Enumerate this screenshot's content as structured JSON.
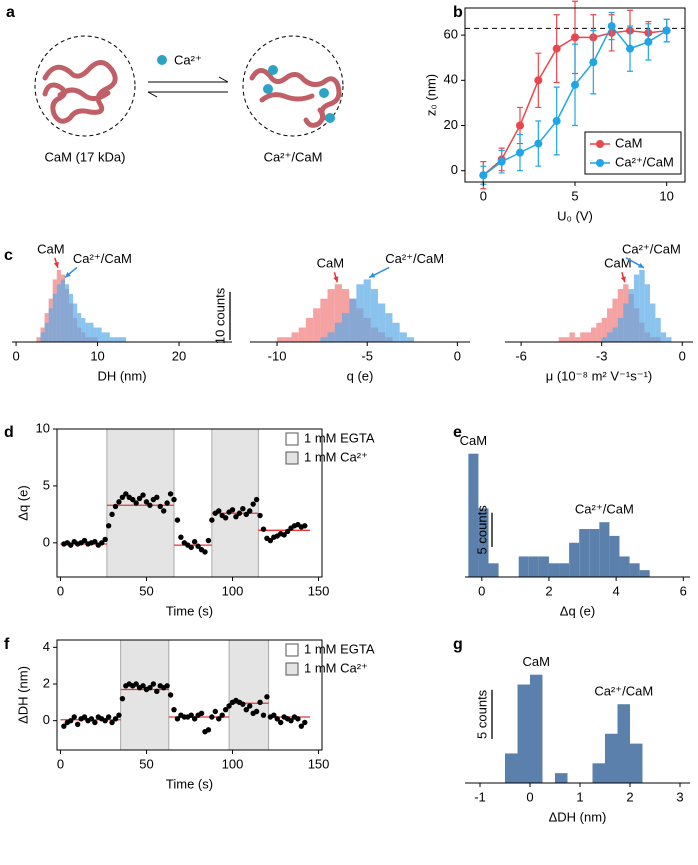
{
  "diagram": {
    "panel": "a",
    "ion_label": "Ca²⁺",
    "left_label": "CaM (17 kDa)",
    "right_label": "Ca²⁺/CaM"
  },
  "chart_data": [
    {
      "type": "line",
      "panel": "b",
      "x": [
        0,
        1,
        2,
        3,
        4,
        5,
        6,
        7,
        8,
        9,
        10
      ],
      "series": [
        {
          "name": "CaM",
          "color": "#e8474d",
          "values": [
            -2,
            5,
            20,
            40,
            54,
            59,
            59,
            61,
            62,
            61,
            62
          ],
          "errors": [
            6,
            5,
            8,
            12,
            15,
            16,
            10,
            8,
            9,
            5,
            5
          ]
        },
        {
          "name": "Ca²⁺/CaM",
          "color": "#1fa6e6",
          "values": [
            -2,
            4,
            8,
            12,
            22,
            38,
            48,
            64,
            54,
            57,
            62
          ],
          "errors": [
            4,
            5,
            8,
            10,
            15,
            18,
            14,
            6,
            10,
            8,
            5
          ]
        }
      ],
      "xlabel": "U₀ (V)",
      "ylabel": "z₀ (nm)",
      "xlim": [
        -1,
        11
      ],
      "ylim": [
        -5,
        72
      ],
      "xticks": [
        0,
        5,
        10
      ],
      "yticks": [
        0,
        20,
        40,
        60
      ],
      "reference_line": 63,
      "legend": "lower right",
      "frame": true
    },
    {
      "type": "histogram",
      "panel": "c",
      "xlabel": "DH (nm)",
      "xlim": [
        -0.5,
        26.5
      ],
      "ylim": [
        0,
        16
      ],
      "xticks": [
        0,
        10,
        20
      ],
      "series": [
        {
          "name": "CaM",
          "color": "#f07a7a",
          "bins": [
            2.5,
            3,
            3.5,
            4,
            4.5,
            5,
            5.5,
            6,
            6.5,
            7,
            7.5,
            8,
            8.5,
            9,
            9.5,
            10
          ],
          "values": [
            1,
            3,
            6,
            9,
            13,
            15,
            14,
            11,
            8,
            5,
            3,
            2,
            1,
            1,
            1
          ]
        },
        {
          "name": "Ca²⁺/CaM",
          "color": "#5aaae8",
          "bins": [
            3,
            3.5,
            4,
            4.5,
            5,
            5.5,
            6,
            6.5,
            7,
            7.5,
            8,
            8.5,
            9,
            9.5,
            10,
            10.5,
            11,
            11.5,
            12,
            12.5,
            13,
            13.5
          ],
          "values": [
            2,
            4,
            7,
            10,
            12,
            13,
            12,
            10,
            8,
            6,
            5,
            4,
            4,
            3,
            3,
            2,
            2,
            1,
            1,
            1,
            1
          ]
        }
      ],
      "scale_bar": {
        "value": 10,
        "label": "10 counts"
      },
      "annotation_arrows": true
    },
    {
      "type": "histogram",
      "xlabel": "q (e)",
      "xlim": [
        -11.5,
        0.7
      ],
      "ylim": [
        0,
        16
      ],
      "xticks": [
        -10,
        -5,
        0
      ],
      "series": [
        {
          "name": "CaM",
          "color": "#f07a7a",
          "bins": [
            -10,
            -9.6,
            -9.2,
            -8.8,
            -8.4,
            -8,
            -7.6,
            -7.2,
            -6.8,
            -6.4,
            -6,
            -5.6,
            -5.2,
            -4.8,
            -4.4,
            -4,
            -3.6
          ],
          "values": [
            1,
            1,
            2,
            3,
            5,
            7,
            9,
            11,
            12,
            11,
            9,
            7,
            5,
            3,
            2,
            1
          ]
        },
        {
          "name": "Ca²⁺/CaM",
          "color": "#5aaae8",
          "bins": [
            -7.6,
            -7.2,
            -6.8,
            -6.4,
            -6,
            -5.6,
            -5.2,
            -4.8,
            -4.4,
            -4,
            -3.6,
            -3.2,
            -2.8,
            -2.4
          ],
          "values": [
            1,
            2,
            4,
            6,
            9,
            12,
            13,
            11,
            8,
            6,
            4,
            2,
            1
          ]
        }
      ],
      "annotation_arrows": true
    },
    {
      "type": "histogram",
      "xlabel": "μ (10⁻⁸ m² V⁻¹s⁻¹)",
      "xlim": [
        -6.6,
        0.4
      ],
      "ylim": [
        0,
        16
      ],
      "xticks": [
        -6,
        -3,
        0
      ],
      "series": [
        {
          "name": "CaM",
          "color": "#f07a7a",
          "bins": [
            -4.6,
            -4.4,
            -4.2,
            -4,
            -3.8,
            -3.6,
            -3.4,
            -3.2,
            -3,
            -2.8,
            -2.6,
            -2.4,
            -2.2,
            -2,
            -1.8,
            -1.6,
            -1.4,
            -1.2,
            -1,
            -0.8
          ],
          "values": [
            1,
            1,
            2,
            1,
            2,
            2,
            3,
            4,
            5,
            7,
            9,
            11,
            12,
            10,
            7,
            4,
            2,
            1,
            1
          ]
        },
        {
          "name": "Ca²⁺/CaM",
          "color": "#5aaae8",
          "bins": [
            -3,
            -2.8,
            -2.6,
            -2.4,
            -2.2,
            -2,
            -1.8,
            -1.6,
            -1.4,
            -1.2,
            -1,
            -0.8,
            -0.6,
            -0.4
          ],
          "values": [
            1,
            2,
            3,
            5,
            8,
            11,
            14,
            15,
            12,
            8,
            5,
            2,
            1
          ]
        }
      ],
      "annotation_arrows": true
    },
    {
      "type": "scatter",
      "panel": "d",
      "color": "#000000",
      "xlabel": "Time (s)",
      "ylabel": "Δq (e)",
      "x": [
        2,
        4,
        6,
        8,
        10,
        12,
        14,
        16,
        18,
        20,
        22,
        24,
        26,
        28,
        30,
        32,
        34,
        36,
        38,
        40,
        42,
        44,
        46,
        48,
        50,
        52,
        54,
        56,
        58,
        60,
        62,
        64,
        66,
        68,
        70,
        72,
        74,
        76,
        78,
        80,
        82,
        84,
        86,
        88,
        90,
        92,
        94,
        96,
        98,
        100,
        102,
        104,
        106,
        108,
        110,
        112,
        114,
        116,
        118,
        120,
        122,
        124,
        126,
        128,
        130,
        132,
        134,
        136,
        138,
        140,
        142
      ],
      "values": [
        -0.1,
        0,
        -0.2,
        0.1,
        -0.1,
        0,
        0.2,
        -0.1,
        0,
        0.1,
        -0.2,
        0,
        0.3,
        1.5,
        2.5,
        3.2,
        3.6,
        4.0,
        4.3,
        4.0,
        3.8,
        3.5,
        3.9,
        4.2,
        3.6,
        3.3,
        3.8,
        4.0,
        3.2,
        2.8,
        3.5,
        4.3,
        3.8,
        2.0,
        0.5,
        0,
        -0.2,
        -0.4,
        0.1,
        -0.3,
        -0.6,
        -0.8,
        0.2,
        2.0,
        2.6,
        2.8,
        2.4,
        2.2,
        2.7,
        2.9,
        2.3,
        2.6,
        3.0,
        2.5,
        2.8,
        3.4,
        3.8,
        2.4,
        1.2,
        0.4,
        0.2,
        0.5,
        0.6,
        0.8,
        0.7,
        1.0,
        1.3,
        1.5,
        1.6,
        1.4,
        1.5
      ],
      "xlim": [
        -2,
        152
      ],
      "ylim": [
        -3,
        10
      ],
      "xticks": [
        0,
        50,
        100,
        150
      ],
      "yticks": [
        0,
        5,
        10
      ],
      "regions": [
        [
          27,
          66
        ],
        [
          88,
          115
        ]
      ],
      "region_color": "#e4e4e4",
      "levels": [
        {
          "x": [
            0,
            27
          ],
          "value": -0.1
        },
        {
          "x": [
            27,
            66
          ],
          "value": 3.3
        },
        {
          "x": [
            66,
            88
          ],
          "value": -0.2
        },
        {
          "x": [
            88,
            115
          ],
          "value": 2.6
        },
        {
          "x": [
            115,
            145
          ],
          "value": 1.1
        }
      ],
      "level_color": "#ee3333",
      "legend_entries": [
        {
          "label": "1 mM EGTA",
          "color": "#ffffff"
        },
        {
          "label": "1 mM Ca²⁺",
          "color": "#e4e4e4"
        }
      ],
      "legend": "upper right",
      "frame": true
    },
    {
      "type": "histogram",
      "panel": "e",
      "xlabel": "Δq (e)",
      "xlim": [
        -0.5,
        6.2
      ],
      "ylim": [
        0,
        20
      ],
      "xticks": [
        0,
        2,
        4,
        6
      ],
      "series": [
        {
          "name": "CaM",
          "color": "#5b80ab",
          "bins": [
            -0.4,
            -0.1,
            0.2,
            0.5
          ],
          "values": [
            18,
            10,
            2
          ]
        },
        {
          "name": "Ca²⁺/CaM",
          "color": "#5b80ab",
          "bins": [
            1.1,
            1.4,
            1.7,
            2.0,
            2.3,
            2.6,
            2.9,
            3.2,
            3.5,
            3.8,
            4.1,
            4.4,
            4.7,
            5.0
          ],
          "values": [
            3,
            3,
            3,
            2,
            2,
            5,
            7,
            7,
            8,
            6,
            3,
            2,
            1
          ]
        }
      ],
      "scale_bar": {
        "value": 5,
        "label": "5 counts"
      },
      "annotation_arrows": false
    },
    {
      "type": "scatter",
      "panel": "f",
      "color": "#000000",
      "xlabel": "Time (s)",
      "ylabel": "ΔDH (nm)",
      "x": [
        2,
        4,
        6,
        8,
        10,
        12,
        14,
        16,
        18,
        20,
        22,
        24,
        26,
        28,
        30,
        32,
        34,
        36,
        38,
        40,
        42,
        44,
        46,
        48,
        50,
        52,
        54,
        56,
        58,
        60,
        62,
        64,
        66,
        68,
        70,
        72,
        74,
        76,
        78,
        80,
        82,
        84,
        86,
        88,
        90,
        92,
        94,
        96,
        98,
        100,
        102,
        104,
        106,
        108,
        110,
        112,
        114,
        116,
        118,
        120,
        122,
        124,
        126,
        128,
        130,
        132,
        134,
        136,
        138,
        140,
        142
      ],
      "values": [
        -0.3,
        -0.1,
        0,
        0.2,
        -0.2,
        0.1,
        0.2,
        0,
        0.1,
        -0.1,
        0.2,
        0.1,
        0,
        0.2,
        -0.1,
        0.1,
        0.3,
        1.2,
        1.9,
        2.0,
        1.9,
        2.0,
        1.8,
        1.9,
        1.7,
        1.8,
        2.0,
        1.6,
        1.9,
        1.8,
        1.9,
        1.4,
        0.6,
        0.1,
        0.3,
        0.2,
        0.2,
        0.3,
        0.1,
        0.3,
        0.4,
        -0.6,
        -0.5,
        0.2,
        0.5,
        0.1,
        0.3,
        0.6,
        0.8,
        1.0,
        1.1,
        1.0,
        0.9,
        0.6,
        0.8,
        0.4,
        0.5,
        1.0,
        0.3,
        1.3,
        0.2,
        0.3,
        0.1,
        -0.1,
        0.2,
        0.1,
        0.0,
        0.2,
        0.1,
        -0.3,
        -0.1
      ],
      "xlim": [
        -2,
        152
      ],
      "ylim": [
        -1.6,
        4.4
      ],
      "xticks": [
        0,
        50,
        100,
        150
      ],
      "yticks": [
        0,
        2,
        4
      ],
      "regions": [
        [
          35,
          63
        ],
        [
          98,
          121
        ]
      ],
      "region_color": "#e4e4e4",
      "levels": [
        {
          "x": [
            0,
            35
          ],
          "value": 0.05
        },
        {
          "x": [
            35,
            63
          ],
          "value": 1.7
        },
        {
          "x": [
            63,
            98
          ],
          "value": 0.2
        },
        {
          "x": [
            98,
            121
          ],
          "value": 0.95
        },
        {
          "x": [
            121,
            145
          ],
          "value": 0.2
        }
      ],
      "level_color": "#ee3333",
      "legend_entries": [
        {
          "label": "1 mM EGTA",
          "color": "#ffffff"
        },
        {
          "label": "1 mM Ca²⁺",
          "color": "#e4e4e4"
        }
      ],
      "legend": "upper right",
      "frame": true
    },
    {
      "type": "histogram",
      "panel": "g",
      "xlabel": "ΔDH (nm)",
      "xlim": [
        -1.3,
        3.2
      ],
      "ylim": [
        0,
        13
      ],
      "xticks": [
        -1,
        0,
        1,
        2,
        3
      ],
      "series": [
        {
          "name": "CaM",
          "color": "#5b80ab",
          "bins": [
            -0.5,
            -0.25,
            0,
            0.25,
            0.5,
            0.75
          ],
          "values": [
            3,
            10,
            11,
            0,
            1
          ]
        },
        {
          "name": "Ca²⁺/CaM",
          "color": "#5b80ab",
          "bins": [
            1.25,
            1.5,
            1.75,
            2,
            2.25
          ],
          "values": [
            2,
            5,
            8,
            4
          ]
        }
      ],
      "scale_bar": {
        "value": 5,
        "label": "5 counts"
      },
      "annotation_arrows": false
    }
  ]
}
